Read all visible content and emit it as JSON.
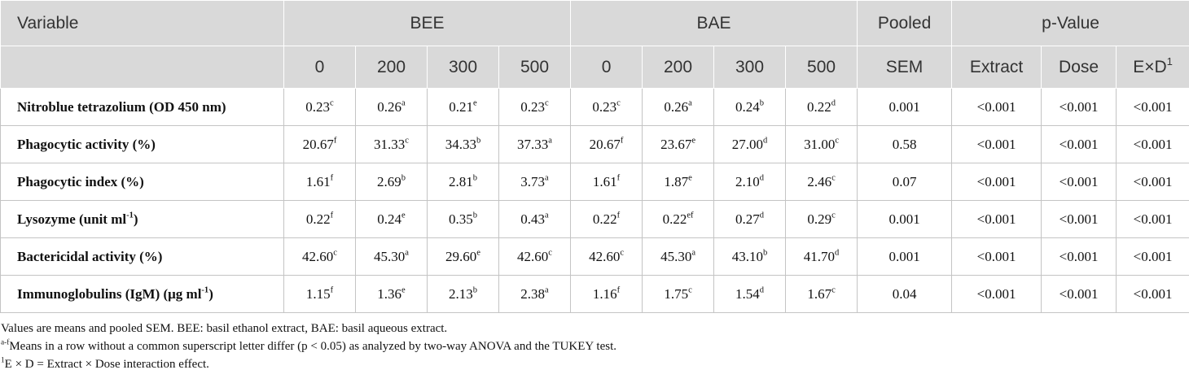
{
  "header": {
    "top": [
      {
        "t": "Variable",
        "span": 1
      },
      {
        "t": "BEE",
        "span": 4
      },
      {
        "t": "BAE",
        "span": 4
      },
      {
        "t": "Pooled",
        "span": 1
      },
      {
        "t": "p-Value",
        "span": 3
      }
    ],
    "sub": [
      {
        "t": "0"
      },
      {
        "t": "200"
      },
      {
        "t": "300"
      },
      {
        "t": "500"
      },
      {
        "t": "0"
      },
      {
        "t": "200"
      },
      {
        "t": "300"
      },
      {
        "t": "500"
      },
      {
        "t": "SEM"
      },
      {
        "t": "Extract"
      },
      {
        "t": "Dose"
      },
      {
        "t": "E×D",
        "s": "1"
      }
    ]
  },
  "rows": [
    {
      "label": {
        "t": "Nitroblue tetrazolium (OD 450 nm)"
      },
      "cells": [
        {
          "t": "0.23",
          "s": "c"
        },
        {
          "t": "0.26",
          "s": "a"
        },
        {
          "t": "0.21",
          "s": "e"
        },
        {
          "t": "0.23",
          "s": "c"
        },
        {
          "t": "0.23",
          "s": "c"
        },
        {
          "t": "0.26",
          "s": "a"
        },
        {
          "t": "0.24",
          "s": "b"
        },
        {
          "t": "0.22",
          "s": "d"
        },
        {
          "t": "0.001"
        },
        {
          "t": "<0.001"
        },
        {
          "t": "<0.001"
        },
        {
          "t": "<0.001"
        }
      ]
    },
    {
      "label": {
        "t": "Phagocytic activity (%)"
      },
      "cells": [
        {
          "t": "20.67",
          "s": "f"
        },
        {
          "t": "31.33",
          "s": "c"
        },
        {
          "t": "34.33",
          "s": "b"
        },
        {
          "t": "37.33",
          "s": "a"
        },
        {
          "t": "20.67",
          "s": "f"
        },
        {
          "t": "23.67",
          "s": "e"
        },
        {
          "t": "27.00",
          "s": "d"
        },
        {
          "t": "31.00",
          "s": "c"
        },
        {
          "t": "0.58"
        },
        {
          "t": "<0.001"
        },
        {
          "t": "<0.001"
        },
        {
          "t": "<0.001"
        }
      ]
    },
    {
      "label": {
        "t": "Phagocytic index (%)"
      },
      "cells": [
        {
          "t": "1.61",
          "s": "f"
        },
        {
          "t": "2.69",
          "s": "b"
        },
        {
          "t": "2.81",
          "s": "b"
        },
        {
          "t": "3.73",
          "s": "a"
        },
        {
          "t": "1.61",
          "s": "f"
        },
        {
          "t": "1.87",
          "s": "e"
        },
        {
          "t": "2.10",
          "s": "d"
        },
        {
          "t": "2.46",
          "s": "c"
        },
        {
          "t": "0.07"
        },
        {
          "t": "<0.001"
        },
        {
          "t": "<0.001"
        },
        {
          "t": "<0.001"
        }
      ]
    },
    {
      "label": {
        "t": "Lysozyme (unit ml",
        "s": "-1",
        "p": ")"
      },
      "cells": [
        {
          "t": "0.22",
          "s": "f"
        },
        {
          "t": "0.24",
          "s": "e"
        },
        {
          "t": "0.35",
          "s": "b"
        },
        {
          "t": "0.43",
          "s": "a"
        },
        {
          "t": "0.22",
          "s": "f"
        },
        {
          "t": "0.22",
          "s": "ef"
        },
        {
          "t": "0.27",
          "s": "d"
        },
        {
          "t": "0.29",
          "s": "c"
        },
        {
          "t": "0.001"
        },
        {
          "t": "<0.001"
        },
        {
          "t": "<0.001"
        },
        {
          "t": "<0.001"
        }
      ]
    },
    {
      "label": {
        "t": "Bactericidal activity (%)"
      },
      "cells": [
        {
          "t": "42.60",
          "s": "c"
        },
        {
          "t": "45.30",
          "s": "a"
        },
        {
          "t": "29.60",
          "s": "e"
        },
        {
          "t": "42.60",
          "s": "c"
        },
        {
          "t": "42.60",
          "s": "c"
        },
        {
          "t": "45.30",
          "s": "a"
        },
        {
          "t": "43.10",
          "s": "b"
        },
        {
          "t": "41.70",
          "s": "d"
        },
        {
          "t": "0.001"
        },
        {
          "t": "<0.001"
        },
        {
          "t": "<0.001"
        },
        {
          "t": "<0.001"
        }
      ]
    },
    {
      "label": {
        "t": "Immunoglobulins (IgM) (μg ml",
        "s": "-1",
        "p": ")"
      },
      "cells": [
        {
          "t": "1.15",
          "s": "f"
        },
        {
          "t": "1.36",
          "s": "e"
        },
        {
          "t": "2.13",
          "s": "b"
        },
        {
          "t": "2.38",
          "s": "a"
        },
        {
          "t": "1.16",
          "s": "f"
        },
        {
          "t": "1.75",
          "s": "c"
        },
        {
          "t": "1.54",
          "s": "d"
        },
        {
          "t": "1.67",
          "s": "c"
        },
        {
          "t": "0.04"
        },
        {
          "t": "<0.001"
        },
        {
          "t": "<0.001"
        },
        {
          "t": "<0.001"
        }
      ]
    }
  ],
  "notes": [
    {
      "t": "Values are means and pooled SEM. BEE: basil ethanol extract, BAE: basil aqueous extract."
    },
    {
      "s": "a-f",
      "t": "Means in a row without a common superscript letter differ (p < 0.05) as analyzed by two-way ANOVA and the TUKEY test."
    },
    {
      "s": "1",
      "t": "E × D = Extract × Dose interaction effect."
    }
  ]
}
